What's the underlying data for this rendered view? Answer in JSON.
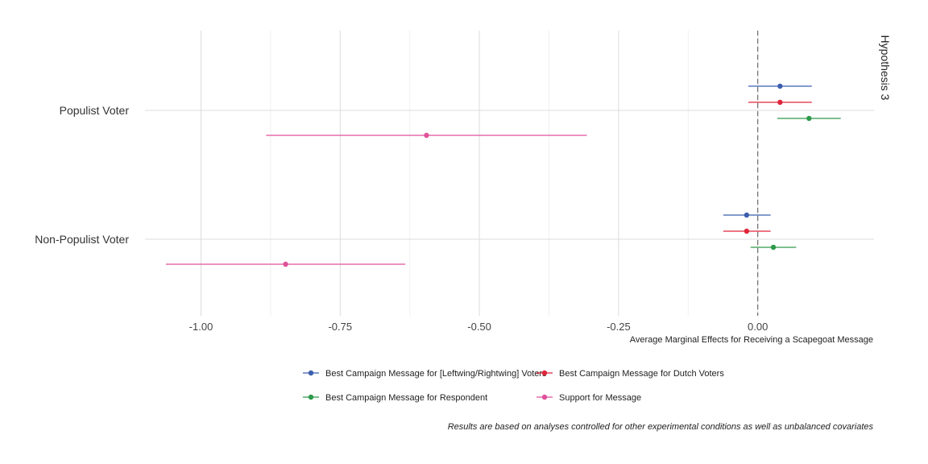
{
  "chart_data": {
    "type": "forest",
    "facet_label": "Hypothesis 3",
    "xlabel": "Average Marginal Effects for Receiving a Scapegoat Message",
    "ylabel": "",
    "xlim": [
      -1.1,
      0.21
    ],
    "x_ticks": [
      -1.0,
      -0.75,
      -0.5,
      -0.25,
      0.0
    ],
    "x_tick_labels": [
      "-1.00",
      "-0.75",
      "-0.50",
      "-0.25",
      "0.00"
    ],
    "reference_line": 0,
    "grid": true,
    "legend_position": "bottom",
    "categories": [
      "Populist Voter",
      "Non-Populist Voter"
    ],
    "series": [
      {
        "name": "Best Campaign Message for [Leftwing/Rightwing] Voters",
        "color": "#3b5fad",
        "points": [
          {
            "category": "Populist Voter",
            "estimate": 0.04,
            "low": -0.017,
            "high": 0.097
          },
          {
            "category": "Non-Populist Voter",
            "estimate": -0.02,
            "low": -0.062,
            "high": 0.023
          }
        ]
      },
      {
        "name": "Best Campaign Message for Dutch Voters",
        "color": "#e0253b",
        "points": [
          {
            "category": "Populist Voter",
            "estimate": 0.04,
            "low": -0.017,
            "high": 0.097
          },
          {
            "category": "Non-Populist Voter",
            "estimate": -0.02,
            "low": -0.062,
            "high": 0.023
          }
        ]
      },
      {
        "name": "Best Campaign Message for Respondent",
        "color": "#2e9a4a",
        "points": [
          {
            "category": "Populist Voter",
            "estimate": 0.092,
            "low": 0.035,
            "high": 0.149
          },
          {
            "category": "Non-Populist Voter",
            "estimate": 0.028,
            "low": -0.013,
            "high": 0.069
          }
        ]
      },
      {
        "name": "Support for Message",
        "color": "#e0529a",
        "points": [
          {
            "category": "Populist Voter",
            "estimate": -0.595,
            "low": -0.883,
            "high": -0.307
          },
          {
            "category": "Non-Populist Voter",
            "estimate": -0.848,
            "low": -1.063,
            "high": -0.633
          }
        ]
      }
    ],
    "caption": "Results are based on analyses controlled for other experimental conditions as well as unbalanced covariates"
  }
}
